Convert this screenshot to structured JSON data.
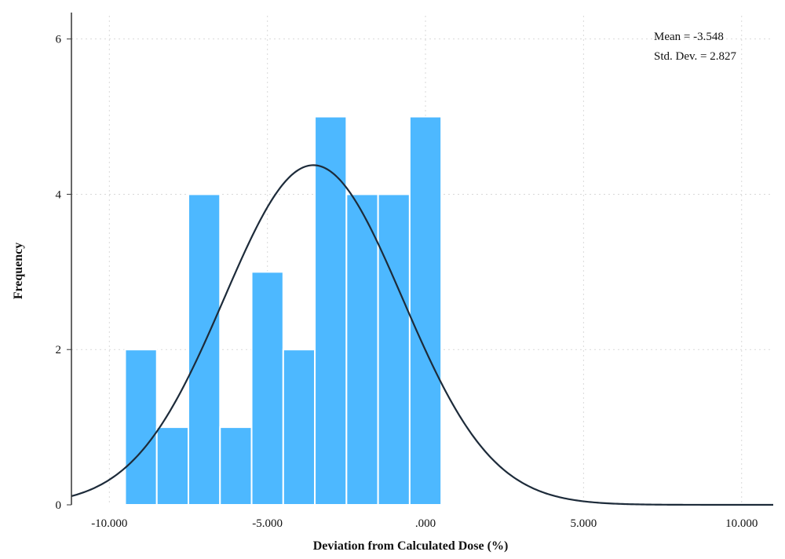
{
  "chart_data": {
    "type": "bar",
    "subtype": "histogram",
    "xlabel": "Deviation from Calculated Dose (%)",
    "ylabel": "Frequency",
    "xlim": [
      -11.2,
      11.0
    ],
    "ylim": [
      0,
      6.3
    ],
    "x_ticks": [
      -10,
      -5,
      0,
      5,
      10
    ],
    "x_tick_labels": [
      "-10.000",
      "-5.000",
      ".000",
      "5.000",
      "10.000"
    ],
    "y_ticks": [
      0,
      2,
      4,
      6
    ],
    "y_tick_labels": [
      "0",
      "2",
      "4",
      "6"
    ],
    "bin_width": 1.0,
    "bins": [
      {
        "x0": -9.5,
        "x1": -8.5,
        "value": 2
      },
      {
        "x0": -8.5,
        "x1": -7.5,
        "value": 1
      },
      {
        "x0": -7.5,
        "x1": -6.5,
        "value": 4
      },
      {
        "x0": -6.5,
        "x1": -5.5,
        "value": 1
      },
      {
        "x0": -5.5,
        "x1": -4.5,
        "value": 3
      },
      {
        "x0": -4.5,
        "x1": -3.5,
        "value": 2
      },
      {
        "x0": -3.5,
        "x1": -2.5,
        "value": 5
      },
      {
        "x0": -2.5,
        "x1": -1.5,
        "value": 4
      },
      {
        "x0": -1.5,
        "x1": -0.5,
        "value": 4
      },
      {
        "x0": -0.5,
        "x1": 0.5,
        "value": 5
      }
    ],
    "normal_curve": {
      "mean": -3.548,
      "sd": 2.827,
      "n": 31
    },
    "grid": true,
    "bar_color": "#4db8ff",
    "curve_color": "#1d2b3a",
    "stats": {
      "mean_label": "Mean = -3.548",
      "sd_label": "Std. Dev. = 2.827"
    }
  }
}
